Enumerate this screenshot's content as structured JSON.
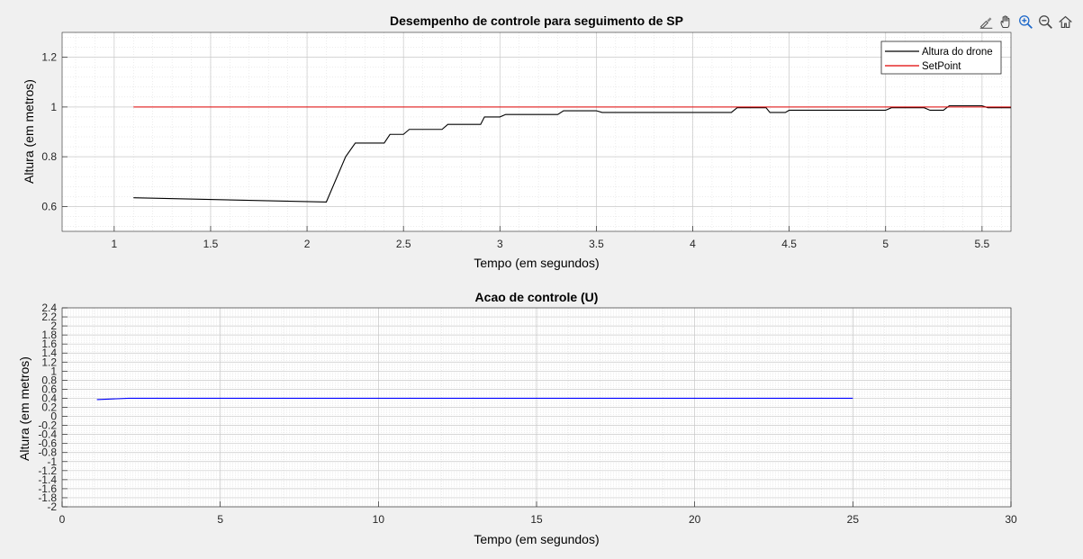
{
  "toolbar": {
    "icons": [
      "brush-icon",
      "pan-hand-icon",
      "zoom-in-icon",
      "zoom-out-icon",
      "home-icon"
    ]
  },
  "chart_data": [
    {
      "type": "line",
      "title": "Desempenho de controle para seguimento de SP",
      "xlabel": "Tempo (em segundos)",
      "ylabel": "Altura (em metros)",
      "xlim": [
        0.73,
        5.65
      ],
      "ylim": [
        0.5,
        1.3
      ],
      "xticks": [
        1,
        1.5,
        2,
        2.5,
        3,
        3.5,
        4,
        4.5,
        5,
        5.5
      ],
      "xtick_labels": [
        "1",
        "1.5",
        "2",
        "2.5",
        "3",
        "3.5",
        "4",
        "4.5",
        "5",
        "5.5"
      ],
      "yticks": [
        0.6,
        0.8,
        1,
        1.2
      ],
      "ytick_labels": [
        "0.6",
        "0.8",
        "1",
        "1.2"
      ],
      "grid": true,
      "minor_grid": true,
      "legend_position": "top-right",
      "series": [
        {
          "name": "Altura do drone",
          "color": "#000000",
          "x": [
            1.1,
            2.1,
            2.2,
            2.25,
            2.4,
            2.43,
            2.5,
            2.53,
            2.7,
            2.73,
            2.9,
            2.92,
            3.0,
            3.03,
            3.3,
            3.33,
            3.5,
            3.53,
            4.2,
            4.23,
            4.38,
            4.4,
            4.48,
            4.5,
            5.0,
            5.03,
            5.2,
            5.23,
            5.3,
            5.33,
            5.5,
            5.53,
            5.65
          ],
          "y": [
            0.635,
            0.618,
            0.8,
            0.855,
            0.855,
            0.89,
            0.89,
            0.91,
            0.91,
            0.93,
            0.93,
            0.96,
            0.96,
            0.97,
            0.97,
            0.985,
            0.985,
            0.978,
            0.978,
            0.997,
            0.997,
            0.978,
            0.978,
            0.987,
            0.987,
            0.997,
            0.997,
            0.987,
            0.987,
            1.005,
            1.005,
            0.997,
            0.997
          ]
        },
        {
          "name": "SetPoint",
          "color": "#e00000",
          "x": [
            1.1,
            5.65
          ],
          "y": [
            1.0,
            1.0
          ]
        }
      ]
    },
    {
      "type": "line",
      "title": "Acao de controle (U)",
      "xlabel": "Tempo (em segundos)",
      "ylabel": "Altura (em metros)",
      "xlim": [
        0,
        30
      ],
      "ylim": [
        -2,
        2.4
      ],
      "xticks": [
        0,
        5,
        10,
        15,
        20,
        25,
        30
      ],
      "xtick_labels": [
        "0",
        "5",
        "10",
        "15",
        "20",
        "25",
        "30"
      ],
      "yticks": [
        -2,
        -1.8,
        -1.6,
        -1.4,
        -1.2,
        -1,
        -0.8,
        -0.6,
        -0.4,
        -0.2,
        0,
        0.2,
        0.4,
        0.6,
        0.8,
        1,
        1.2,
        1.4,
        1.6,
        1.8,
        2,
        2.2,
        2.4
      ],
      "ytick_labels": [
        "-2",
        "-1.8",
        "-1.6",
        "-1.4",
        "-1.2",
        "-1",
        "-0.8",
        "-0.6",
        "-0.4",
        "-0.2",
        "0",
        "0.2",
        "0.4",
        "0.6",
        "0.8",
        "1",
        "1.2",
        "1.4",
        "1.6",
        "1.8",
        "2",
        "2.2",
        "2.4"
      ],
      "grid": true,
      "minor_grid": true,
      "series": [
        {
          "color": "#0000ff",
          "x": [
            1.1,
            2.1,
            25.0
          ],
          "y": [
            0.37,
            0.4,
            0.4
          ]
        }
      ]
    }
  ]
}
